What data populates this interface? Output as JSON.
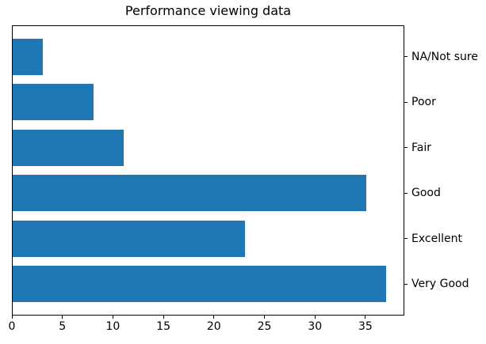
{
  "chart_data": {
    "type": "bar",
    "orientation": "horizontal",
    "title": "Performance viewing data",
    "categories": [
      "NA/Not sure",
      "Poor",
      "Fair",
      "Good",
      "Excellent",
      "Very Good"
    ],
    "values": [
      3,
      8,
      11,
      35,
      23,
      37
    ],
    "xlabel": "",
    "ylabel": "",
    "xlim": [
      0,
      38.85
    ],
    "x_ticks": [
      0,
      5,
      10,
      15,
      20,
      25,
      30,
      35
    ],
    "ytick_side": "right",
    "bar_color": "#1f77b4",
    "grid": false,
    "legend": null
  }
}
